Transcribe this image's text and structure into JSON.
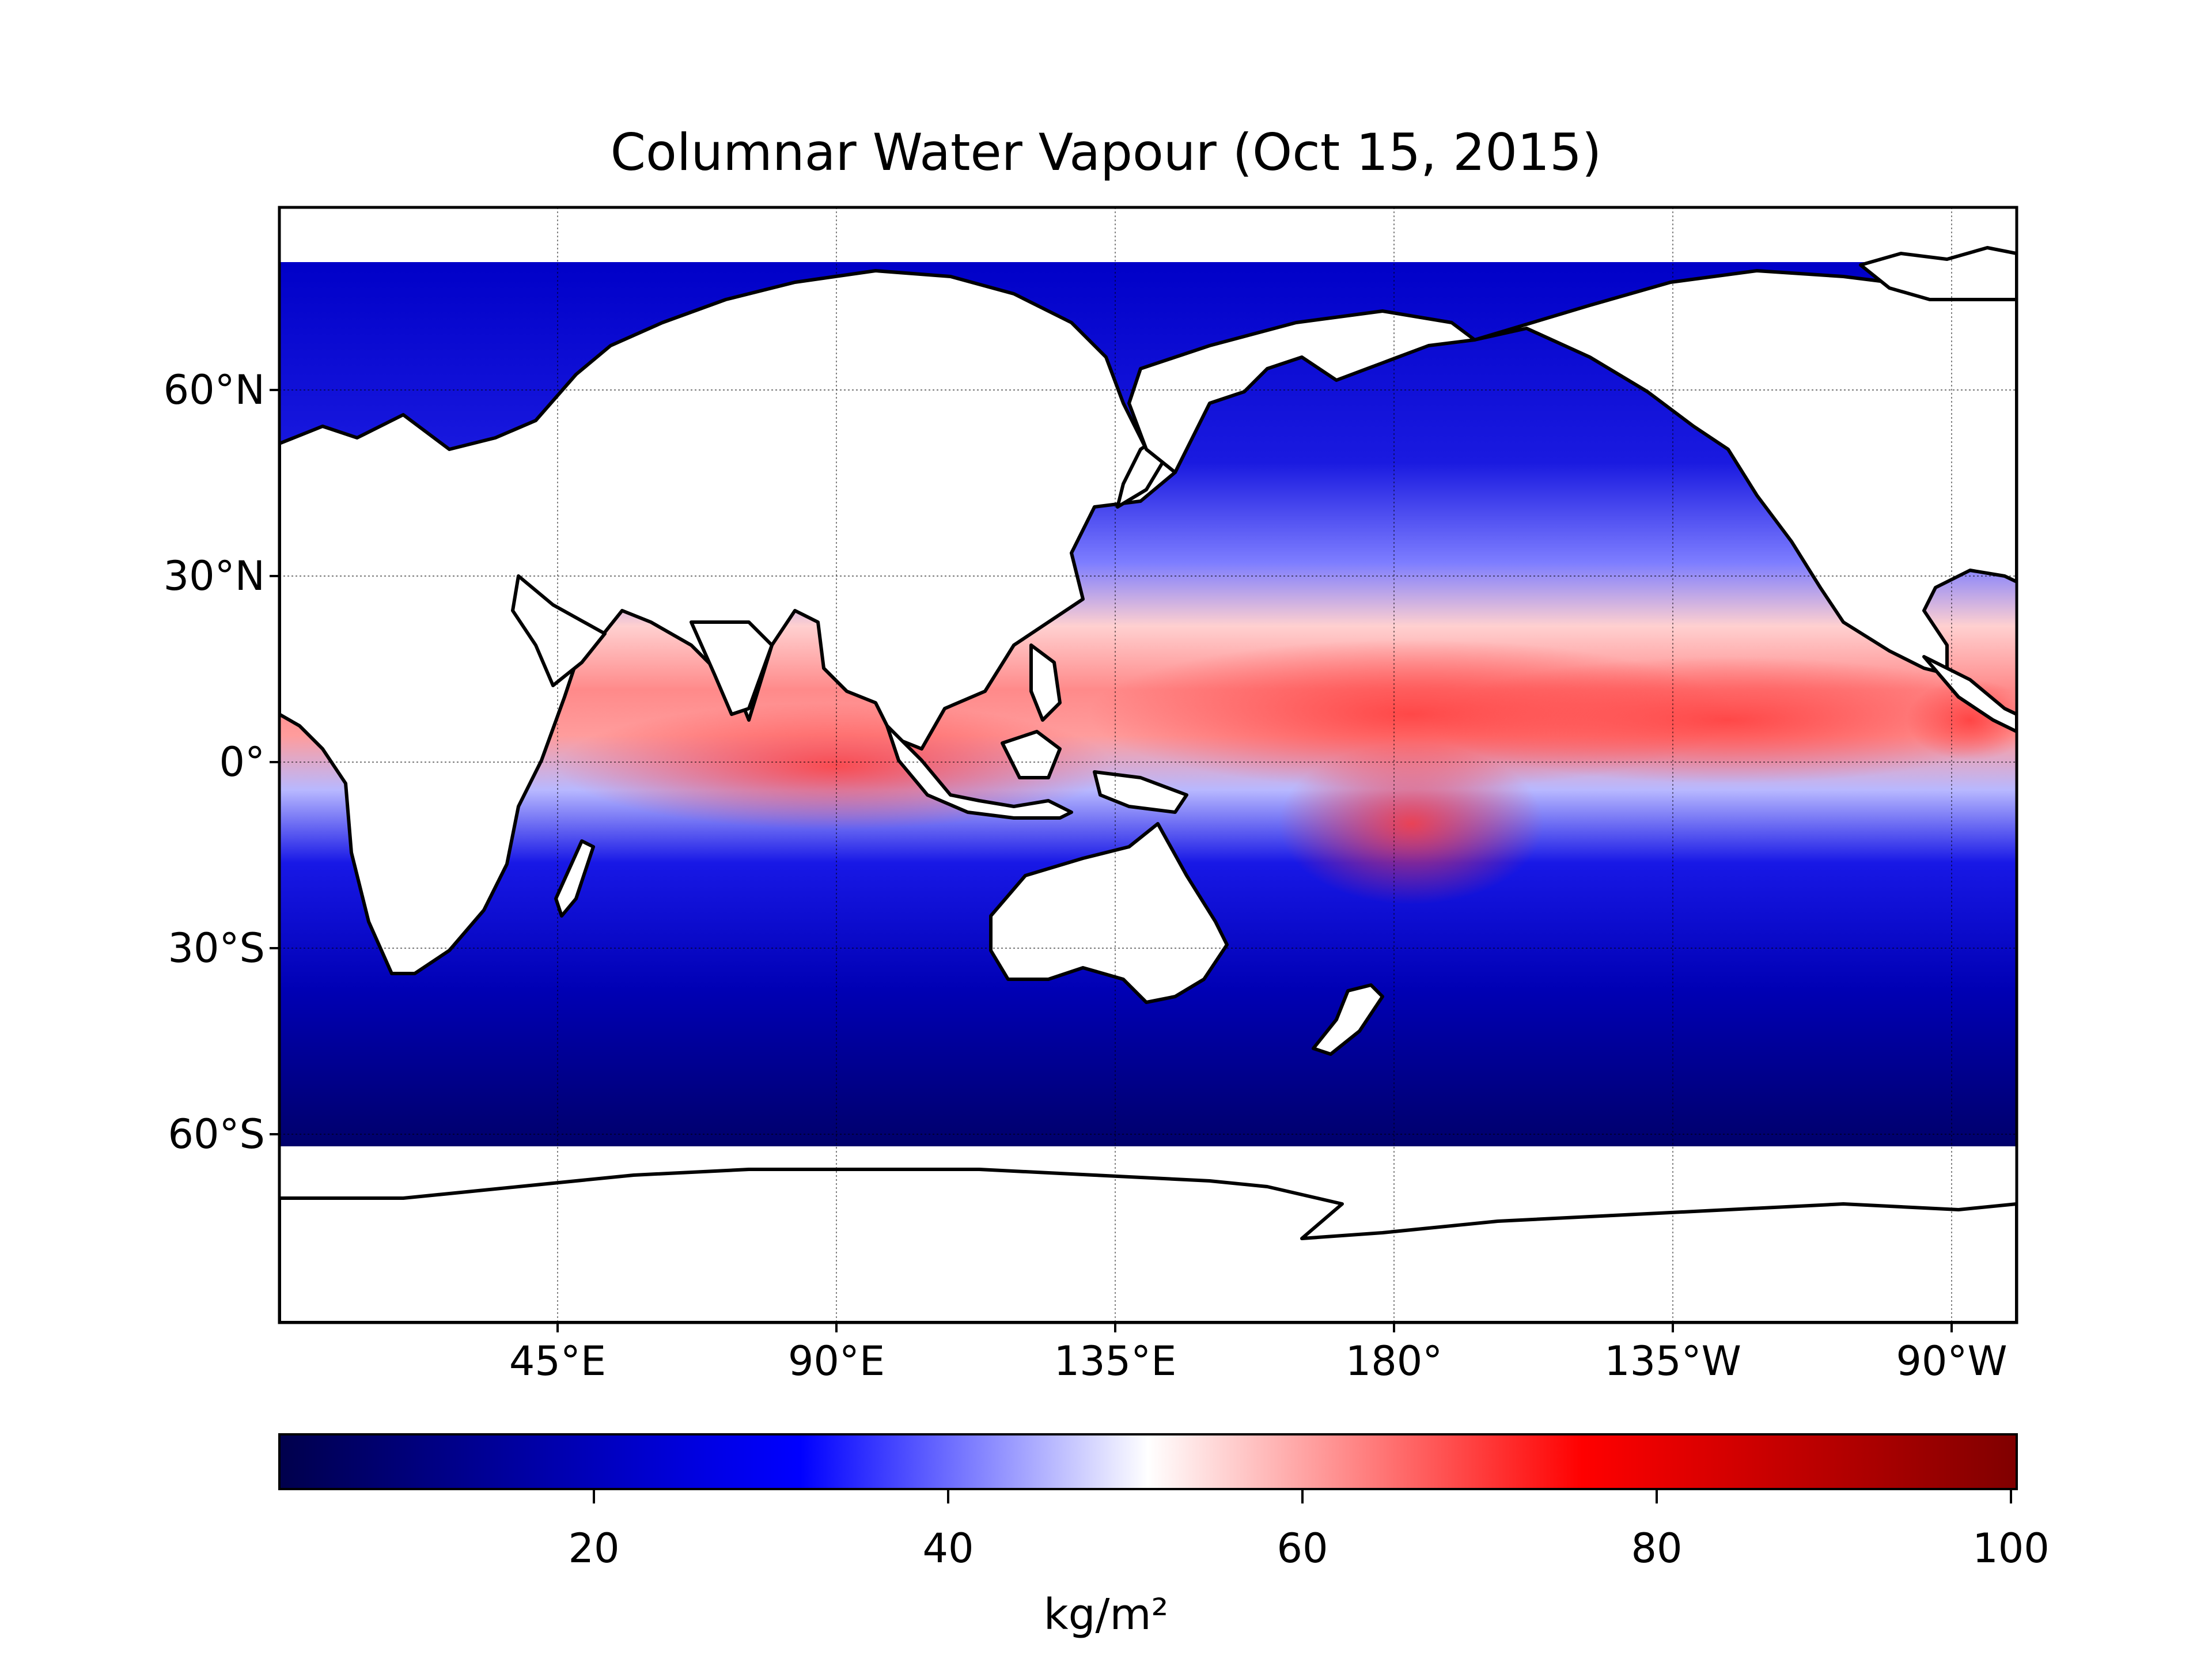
{
  "title": "Columnar Water Vapour (Oct 15, 2015)",
  "map": {
    "projection": "equirectangular",
    "central_longitude": "Pacific-centred (~153°E)",
    "lat_ticks": [
      "60°N",
      "30°N",
      "0°",
      "30°S",
      "60°S"
    ],
    "lon_ticks": [
      "45°E",
      "90°E",
      "135°E",
      "180°",
      "135°W",
      "90°W"
    ],
    "gridlines": true,
    "coastlines": true,
    "land_masked": true,
    "ocean_colormap": "seismic",
    "colors": {
      "dry": "#00004c",
      "low": "#0000e0",
      "mid_low": "#4a4aff",
      "neutral": "#ffffff",
      "mid_high": "#ff9a9a",
      "moist": "#ff3030",
      "extreme": "#800000",
      "coast": "#000000",
      "land": "#ffffff"
    }
  },
  "colorbar": {
    "ticks": [
      "20",
      "40",
      "60",
      "80",
      "100"
    ],
    "tick_values": [
      20,
      40,
      60,
      80,
      100
    ],
    "min": 0,
    "max": 100,
    "unit": "kg/m²",
    "orientation": "horizontal"
  }
}
